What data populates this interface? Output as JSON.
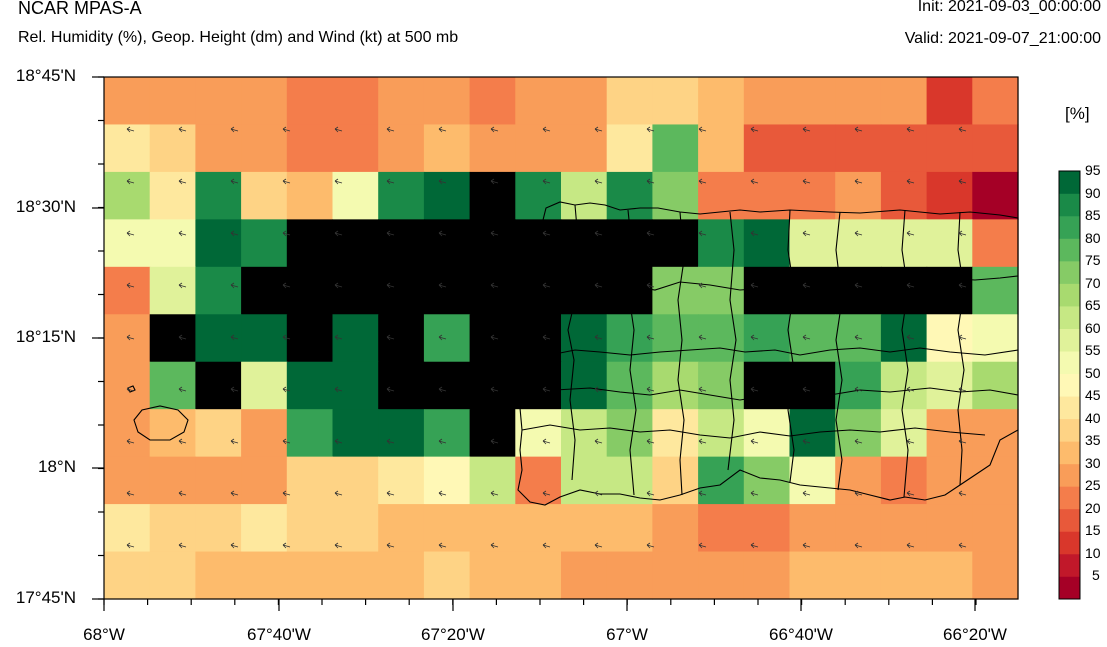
{
  "header": {
    "title": "NCAR MPAS-A",
    "subtitle": "Rel. Humidity (%), Geop. Height (dm) and Wind (kt) at 500 mb",
    "init": "Init: 2021-09-03_00:00:00",
    "valid": "Valid: 2021-09-07_21:00:00"
  },
  "colorbar": {
    "units": "[%]",
    "levels": [
      "5",
      "10",
      "15",
      "20",
      "25",
      "30",
      "35",
      "40",
      "45",
      "50",
      "55",
      "60",
      "65",
      "70",
      "75",
      "80",
      "85",
      "90",
      "95"
    ],
    "colors": [
      "#a50026",
      "#c1182a",
      "#d9372b",
      "#e8593a",
      "#f47d4b",
      "#f99d59",
      "#fdbb6c",
      "#fed385",
      "#fee89e",
      "#fff8b6",
      "#f4fab0",
      "#e0f29a",
      "#c6e884",
      "#a8da6f",
      "#86cb66",
      "#5cb85d",
      "#36a255",
      "#1a8a48",
      "#006837"
    ]
  },
  "axes": {
    "y_labels": [
      "18°45'N",
      "18°30'N",
      "18°15'N",
      "18°N",
      "17°45'N"
    ],
    "x_labels": [
      "68°W",
      "67°40'W",
      "67°20'W",
      "67°W",
      "66°40'W",
      "66°20'W"
    ]
  },
  "grid_levels": [
    [
      5,
      5,
      5,
      5,
      4,
      4,
      5,
      5,
      4,
      5,
      5,
      7,
      7,
      6,
      5,
      5,
      5,
      5,
      2,
      4
    ],
    [
      8,
      7,
      5,
      5,
      4,
      4,
      5,
      6,
      5,
      5,
      5,
      8,
      15,
      6,
      3,
      3,
      3,
      3,
      3,
      3
    ],
    [
      13,
      8,
      17,
      7,
      6,
      10,
      17,
      18,
      19,
      17,
      12,
      17,
      14,
      4,
      4,
      4,
      5,
      3,
      2,
      0
    ],
    [
      10,
      10,
      18,
      17,
      19,
      19,
      19,
      19,
      19,
      19,
      19,
      19,
      19,
      17,
      18,
      11,
      11,
      11,
      11,
      4
    ],
    [
      4,
      11,
      17,
      19,
      19,
      19,
      19,
      19,
      19,
      19,
      19,
      19,
      14,
      14,
      19,
      19,
      19,
      19,
      19,
      15
    ],
    [
      5,
      19,
      18,
      18,
      19,
      18,
      19,
      16,
      19,
      19,
      18,
      16,
      15,
      15,
      16,
      15,
      15,
      18,
      9,
      10
    ],
    [
      5,
      15,
      19,
      11,
      18,
      18,
      19,
      19,
      19,
      19,
      18,
      15,
      13,
      14,
      19,
      19,
      16,
      12,
      11,
      13
    ],
    [
      5,
      6,
      7,
      5,
      16,
      18,
      18,
      16,
      19,
      10,
      12,
      14,
      8,
      12,
      10,
      18,
      14,
      11,
      5,
      5
    ],
    [
      5,
      5,
      5,
      5,
      7,
      7,
      8,
      9,
      12,
      4,
      12,
      12,
      7,
      16,
      14,
      10,
      5,
      4,
      5,
      5
    ],
    [
      8,
      7,
      7,
      8,
      7,
      7,
      6,
      6,
      6,
      6,
      6,
      6,
      5,
      4,
      4,
      5,
      5,
      5,
      5,
      5
    ],
    [
      7,
      7,
      6,
      6,
      6,
      6,
      6,
      7,
      6,
      6,
      5,
      5,
      5,
      5,
      5,
      6,
      6,
      6,
      6,
      5
    ]
  ]
}
